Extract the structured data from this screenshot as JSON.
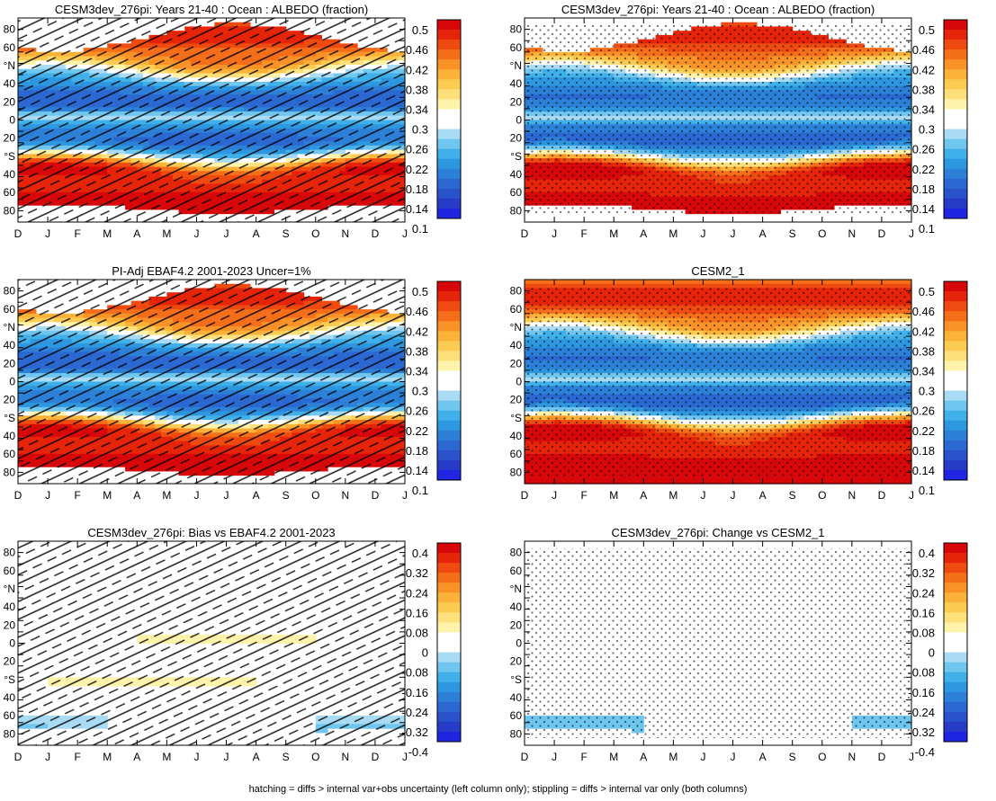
{
  "footer": "hatching = diffs > internal var+obs uncertainty (left column only); stippling = diffs > internal var only (both columns)",
  "month_labels": [
    "D",
    "J",
    "F",
    "M",
    "A",
    "M",
    "J",
    "J",
    "A",
    "S",
    "O",
    "N",
    "D",
    "J"
  ],
  "lat_tick_labels": [
    "80",
    "60",
    "°N",
    "40",
    "20",
    "0",
    "20",
    "°S",
    "40",
    "60",
    "80"
  ],
  "colorbars": {
    "albedo": {
      "labels": [
        "0.5",
        "0.46",
        "0.42",
        "0.38",
        "0.34",
        "0.3",
        "0.26",
        "0.22",
        "0.18",
        "0.14",
        "0.1"
      ],
      "colors": [
        "#d7070a",
        "#e5240a",
        "#ef4b10",
        "#f56f1a",
        "#f99328",
        "#fbb238",
        "#fccb52",
        "#fee07a",
        "#fff3ac",
        "#ffffff",
        "#ffffff",
        "#a9dcf4",
        "#6fc6ef",
        "#3fb0ea",
        "#2d97e0",
        "#2c80d8",
        "#2b68d2",
        "#2a52cb",
        "#273cc6",
        "#1f25e0"
      ]
    },
    "diff": {
      "labels": [
        "0.4",
        "0.32",
        "0.24",
        "0.16",
        "0.08",
        "0",
        "-0.08",
        "-0.16",
        "-0.24",
        "-0.32",
        "-0.4"
      ],
      "colors": [
        "#d7070a",
        "#e5240a",
        "#ef4b10",
        "#f56f1a",
        "#f99328",
        "#fbb238",
        "#fccb52",
        "#fee07a",
        "#fff3ac",
        "#ffffff",
        "#ffffff",
        "#a9dcf4",
        "#6fc6ef",
        "#3fb0ea",
        "#2d97e0",
        "#2c80d8",
        "#2b68d2",
        "#2a52cb",
        "#273cc6",
        "#1f25e0"
      ]
    }
  },
  "chart_data": [
    {
      "type": "heatmap",
      "title": "CESM3dev_276pi: Years 21-40 : Ocean : ALBEDO (fraction)",
      "x_categories": [
        "D",
        "J",
        "F",
        "M",
        "A",
        "M",
        "J",
        "J",
        "A",
        "S",
        "O",
        "N",
        "D",
        "J"
      ],
      "ylim": [
        -90,
        90
      ],
      "field": "albedo",
      "colorbar": "albedo",
      "overlay": "hatch"
    },
    {
      "type": "heatmap",
      "title": "CESM3dev_276pi: Years 21-40 : Ocean : ALBEDO (fraction)",
      "x_categories": [
        "D",
        "J",
        "F",
        "M",
        "A",
        "M",
        "J",
        "J",
        "A",
        "S",
        "O",
        "N",
        "D",
        "J"
      ],
      "ylim": [
        -90,
        90
      ],
      "field": "albedo",
      "colorbar": "albedo",
      "overlay": "stipple"
    },
    {
      "type": "heatmap",
      "title": "PI-Adj EBAF4.2 2001-2023 Uncer=1%",
      "x_categories": [
        "D",
        "J",
        "F",
        "M",
        "A",
        "M",
        "J",
        "J",
        "A",
        "S",
        "O",
        "N",
        "D",
        "J"
      ],
      "ylim": [
        -90,
        90
      ],
      "field": "albedo",
      "colorbar": "albedo",
      "overlay": "hatch"
    },
    {
      "type": "heatmap",
      "title": "CESM2_1",
      "x_categories": [
        "D",
        "J",
        "F",
        "M",
        "A",
        "M",
        "J",
        "J",
        "A",
        "S",
        "O",
        "N",
        "D",
        "J"
      ],
      "ylim": [
        -90,
        90
      ],
      "field": "albedo",
      "colorbar": "albedo",
      "overlay": "stipple"
    },
    {
      "type": "heatmap",
      "title": "CESM3dev_276pi: Bias vs EBAF4.2 2001-2023",
      "x_categories": [
        "D",
        "J",
        "F",
        "M",
        "A",
        "M",
        "J",
        "J",
        "A",
        "S",
        "O",
        "N",
        "D",
        "J"
      ],
      "ylim": [
        -90,
        90
      ],
      "field": "bias",
      "colorbar": "diff",
      "overlay": "hatch"
    },
    {
      "type": "heatmap",
      "title": "CESM3dev_276pi: Change vs CESM2_1",
      "x_categories": [
        "D",
        "J",
        "F",
        "M",
        "A",
        "M",
        "J",
        "J",
        "A",
        "S",
        "O",
        "N",
        "D",
        "J"
      ],
      "ylim": [
        -90,
        90
      ],
      "field": "change",
      "colorbar": "diff",
      "overlay": "stipple"
    }
  ]
}
